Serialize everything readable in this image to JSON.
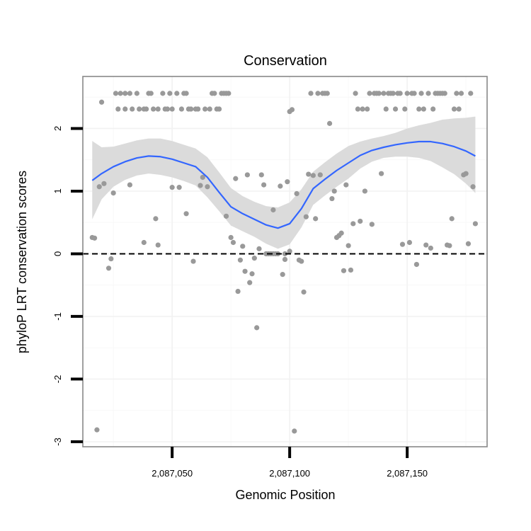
{
  "chart_data": {
    "type": "scatter",
    "title": "Conservation",
    "xlabel": "Genomic Position",
    "ylabel": "phyloP LRT conservation scores",
    "xlim": [
      2087012,
      2087184
    ],
    "ylim": [
      -3.08,
      2.83
    ],
    "x_ticks": [
      2087050,
      2087100,
      2087150
    ],
    "x_tick_labels": [
      "2,087,050",
      "2,087,100",
      "2,087,150"
    ],
    "y_ticks": [
      -3,
      -2,
      -1,
      0,
      1,
      2
    ],
    "y_tick_labels": [
      "-3",
      "-2",
      "-1",
      "0",
      "1",
      "2"
    ],
    "reference_line": {
      "y": 0,
      "style": "dashed"
    },
    "grid": true,
    "colors": {
      "points": "#999999",
      "smooth": "#3366ff",
      "ribbon": "#d9d9d9",
      "panel_border": "#888888"
    },
    "points": [
      [
        2087016,
        0.26
      ],
      [
        2087017,
        0.25
      ],
      [
        2087018,
        -2.81
      ],
      [
        2087019,
        1.07
      ],
      [
        2087020,
        2.42
      ],
      [
        2087021,
        1.12
      ],
      [
        2087023,
        -0.23
      ],
      [
        2087024,
        -0.08
      ],
      [
        2087025,
        0.97
      ],
      [
        2087026,
        2.56
      ],
      [
        2087027,
        2.31
      ],
      [
        2087028,
        2.56
      ],
      [
        2087030,
        2.31
      ],
      [
        2087030,
        2.56
      ],
      [
        2087032,
        2.56
      ],
      [
        2087032,
        1.1
      ],
      [
        2087033,
        2.31
      ],
      [
        2087035,
        2.56
      ],
      [
        2087036,
        2.31
      ],
      [
        2087038,
        2.31
      ],
      [
        2087038,
        0.18
      ],
      [
        2087039,
        2.31
      ],
      [
        2087040,
        2.56
      ],
      [
        2087041,
        2.56
      ],
      [
        2087042,
        2.31
      ],
      [
        2087043,
        0.56
      ],
      [
        2087044,
        2.31
      ],
      [
        2087044,
        0.14
      ],
      [
        2087046,
        2.56
      ],
      [
        2087047,
        2.31
      ],
      [
        2087048,
        2.31
      ],
      [
        2087049,
        2.56
      ],
      [
        2087050,
        1.06
      ],
      [
        2087050,
        2.31
      ],
      [
        2087052,
        2.56
      ],
      [
        2087053,
        1.06
      ],
      [
        2087054,
        2.31
      ],
      [
        2087055,
        2.56
      ],
      [
        2087056,
        2.56
      ],
      [
        2087056,
        0.64
      ],
      [
        2087057,
        2.31
      ],
      [
        2087058,
        2.31
      ],
      [
        2087059,
        -0.12
      ],
      [
        2087060,
        2.31
      ],
      [
        2087061,
        2.31
      ],
      [
        2087062,
        1.09
      ],
      [
        2087063,
        1.22
      ],
      [
        2087064,
        2.31
      ],
      [
        2087065,
        1.07
      ],
      [
        2087066,
        2.31
      ],
      [
        2087067,
        2.56
      ],
      [
        2087068,
        2.56
      ],
      [
        2087069,
        2.31
      ],
      [
        2087070,
        2.31
      ],
      [
        2087071,
        2.56
      ],
      [
        2087072,
        2.56
      ],
      [
        2087073,
        0.6
      ],
      [
        2087073,
        2.56
      ],
      [
        2087074,
        2.56
      ],
      [
        2087075,
        0.26
      ],
      [
        2087076,
        0.18
      ],
      [
        2087077,
        1.2
      ],
      [
        2087078,
        -0.6
      ],
      [
        2087079,
        -0.1
      ],
      [
        2087080,
        0.12
      ],
      [
        2087081,
        -0.28
      ],
      [
        2087082,
        1.26
      ],
      [
        2087083,
        -0.46
      ],
      [
        2087084,
        -0.32
      ],
      [
        2087085,
        -0.07
      ],
      [
        2087086,
        -1.18
      ],
      [
        2087087,
        0.08
      ],
      [
        2087088,
        1.26
      ],
      [
        2087089,
        1.1
      ],
      [
        2087090,
        0.0
      ],
      [
        2087090,
        0.0
      ],
      [
        2087091,
        0.0
      ],
      [
        2087092,
        0.0
      ],
      [
        2087093,
        0.0
      ],
      [
        2087093,
        0.7
      ],
      [
        2087094,
        0.0
      ],
      [
        2087095,
        0.0
      ],
      [
        2087096,
        1.08
      ],
      [
        2087097,
        -0.33
      ],
      [
        2087098,
        0.0
      ],
      [
        2087098,
        -0.09
      ],
      [
        2087099,
        1.15
      ],
      [
        2087100,
        0.04
      ],
      [
        2087100,
        2.27
      ],
      [
        2087101,
        2.3
      ],
      [
        2087102,
        -2.83
      ],
      [
        2087103,
        0.96
      ],
      [
        2087104,
        -0.1
      ],
      [
        2087105,
        -0.12
      ],
      [
        2087106,
        -0.61
      ],
      [
        2087107,
        0.59
      ],
      [
        2087108,
        1.27
      ],
      [
        2087109,
        2.56
      ],
      [
        2087110,
        1.25
      ],
      [
        2087111,
        0.56
      ],
      [
        2087112,
        2.56
      ],
      [
        2087113,
        1.26
      ],
      [
        2087114,
        2.56
      ],
      [
        2087115,
        2.56
      ],
      [
        2087116,
        2.56
      ],
      [
        2087117,
        2.08
      ],
      [
        2087118,
        0.88
      ],
      [
        2087119,
        1.0
      ],
      [
        2087120,
        0.26
      ],
      [
        2087121,
        0.29
      ],
      [
        2087122,
        0.33
      ],
      [
        2087123,
        -0.27
      ],
      [
        2087124,
        1.1
      ],
      [
        2087125,
        0.13
      ],
      [
        2087126,
        -0.26
      ],
      [
        2087127,
        0.48
      ],
      [
        2087128,
        2.56
      ],
      [
        2087129,
        2.31
      ],
      [
        2087130,
        0.52
      ],
      [
        2087131,
        2.31
      ],
      [
        2087132,
        1.0
      ],
      [
        2087133,
        2.31
      ],
      [
        2087134,
        2.56
      ],
      [
        2087135,
        0.47
      ],
      [
        2087136,
        2.56
      ],
      [
        2087137,
        2.56
      ],
      [
        2087138,
        2.56
      ],
      [
        2087139,
        1.28
      ],
      [
        2087140,
        2.56
      ],
      [
        2087141,
        2.31
      ],
      [
        2087142,
        2.56
      ],
      [
        2087143,
        2.56
      ],
      [
        2087144,
        2.56
      ],
      [
        2087145,
        2.31
      ],
      [
        2087146,
        2.56
      ],
      [
        2087147,
        2.56
      ],
      [
        2087148,
        0.15
      ],
      [
        2087149,
        2.31
      ],
      [
        2087150,
        2.56
      ],
      [
        2087151,
        0.18
      ],
      [
        2087152,
        2.56
      ],
      [
        2087153,
        2.56
      ],
      [
        2087154,
        -0.17
      ],
      [
        2087155,
        2.31
      ],
      [
        2087156,
        2.56
      ],
      [
        2087157,
        2.31
      ],
      [
        2087158,
        0.14
      ],
      [
        2087159,
        2.56
      ],
      [
        2087160,
        0.09
      ],
      [
        2087161,
        2.31
      ],
      [
        2087162,
        2.56
      ],
      [
        2087163,
        2.56
      ],
      [
        2087164,
        2.56
      ],
      [
        2087165,
        2.56
      ],
      [
        2087166,
        2.56
      ],
      [
        2087167,
        0.14
      ],
      [
        2087168,
        0.13
      ],
      [
        2087169,
        0.56
      ],
      [
        2087170,
        2.31
      ],
      [
        2087171,
        2.56
      ],
      [
        2087172,
        2.31
      ],
      [
        2087173,
        2.56
      ],
      [
        2087174,
        1.26
      ],
      [
        2087175,
        1.28
      ],
      [
        2087176,
        0.16
      ],
      [
        2087177,
        2.56
      ],
      [
        2087178,
        1.07
      ],
      [
        2087179,
        0.48
      ]
    ],
    "smooth": {
      "x": [
        2087016,
        2087020,
        2087025,
        2087030,
        2087035,
        2087040,
        2087045,
        2087050,
        2087055,
        2087060,
        2087065,
        2087070,
        2087075,
        2087080,
        2087085,
        2087090,
        2087095,
        2087100,
        2087105,
        2087110,
        2087115,
        2087120,
        2087125,
        2087130,
        2087135,
        2087140,
        2087145,
        2087150,
        2087155,
        2087160,
        2087165,
        2087170,
        2087175,
        2087179
      ],
      "y": [
        1.17,
        1.28,
        1.39,
        1.47,
        1.53,
        1.56,
        1.55,
        1.51,
        1.45,
        1.39,
        1.22,
        0.98,
        0.75,
        0.64,
        0.55,
        0.46,
        0.41,
        0.48,
        0.72,
        1.04,
        1.19,
        1.33,
        1.45,
        1.57,
        1.65,
        1.7,
        1.74,
        1.77,
        1.79,
        1.79,
        1.76,
        1.71,
        1.64,
        1.56
      ],
      "lower": [
        0.55,
        0.87,
        1.07,
        1.18,
        1.25,
        1.28,
        1.26,
        1.22,
        1.16,
        1.09,
        0.9,
        0.68,
        0.45,
        0.36,
        0.27,
        0.16,
        0.08,
        0.15,
        0.42,
        0.78,
        0.93,
        1.07,
        1.2,
        1.36,
        1.47,
        1.53,
        1.55,
        1.55,
        1.53,
        1.48,
        1.38,
        1.27,
        1.12,
        0.97
      ],
      "upper": [
        1.8,
        1.7,
        1.71,
        1.76,
        1.81,
        1.84,
        1.84,
        1.8,
        1.74,
        1.68,
        1.54,
        1.3,
        1.05,
        0.92,
        0.83,
        0.76,
        0.74,
        0.82,
        1.03,
        1.31,
        1.46,
        1.6,
        1.72,
        1.79,
        1.84,
        1.88,
        1.93,
        2.0,
        2.05,
        2.09,
        2.14,
        2.16,
        2.17,
        2.19
      ]
    }
  }
}
